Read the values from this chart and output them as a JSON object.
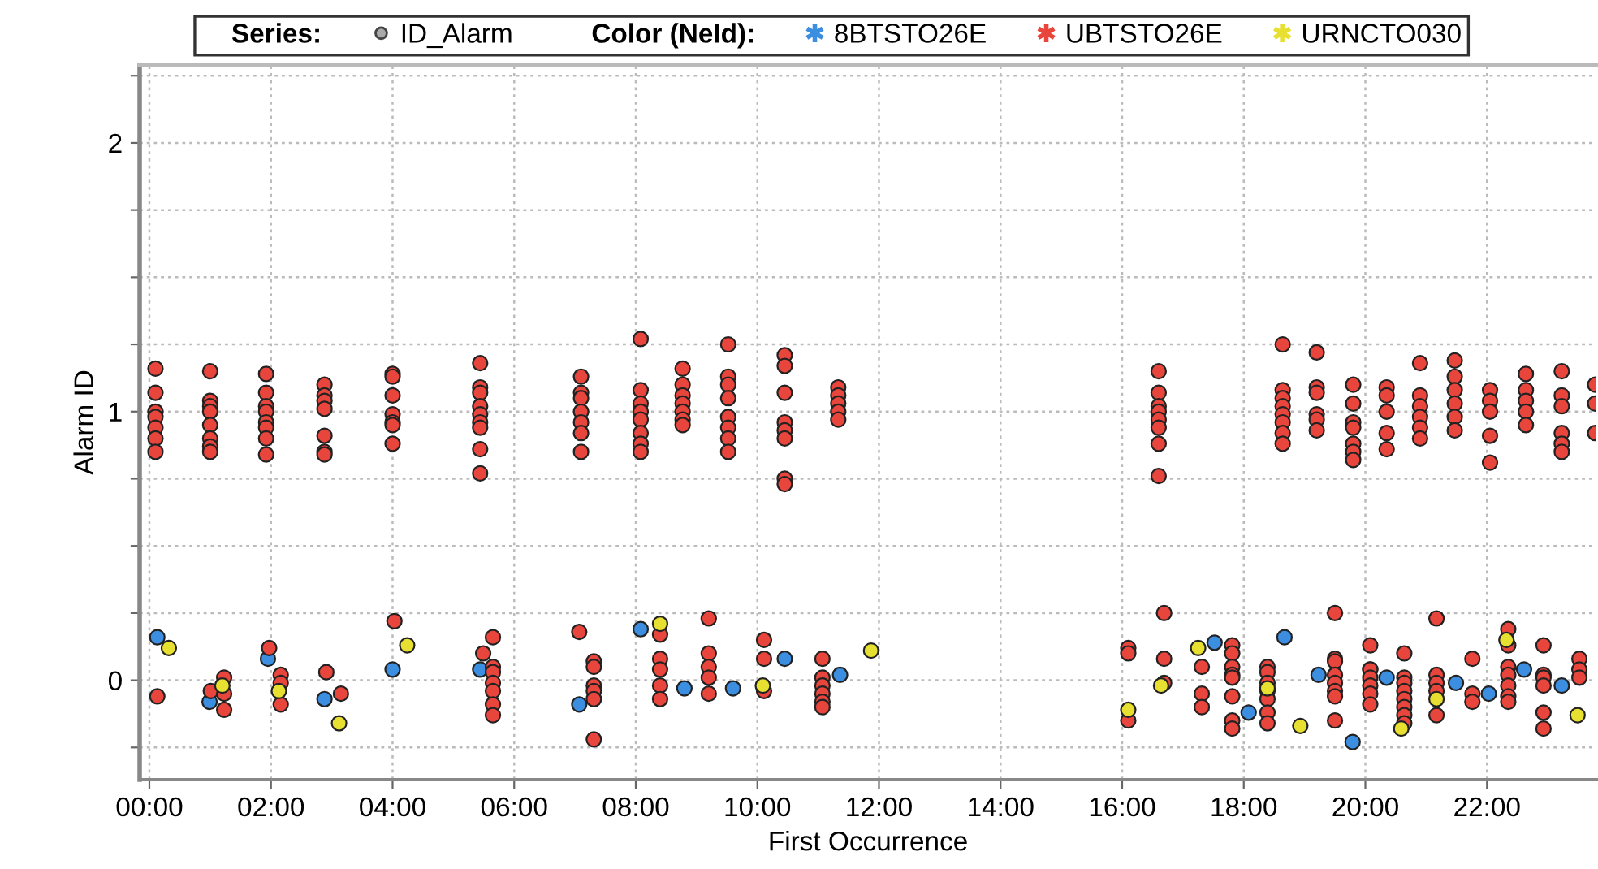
{
  "chart_data": {
    "type": "scatter",
    "xlabel": "First Occurrence",
    "ylabel": "Alarm ID",
    "legend_title": "Color (NeId):",
    "annotations": [
      "Series:",
      "ID_Alarm"
    ],
    "legend": "top",
    "grid": true,
    "marker": "circle",
    "xlim": [
      -0.16,
      23.8
    ],
    "ylim": [
      -0.37,
      2.29
    ],
    "xticks": [
      {
        "value": 0,
        "label": "00:00"
      },
      {
        "value": 2,
        "label": "02:00"
      },
      {
        "value": 4,
        "label": "04:00"
      },
      {
        "value": 6,
        "label": "06:00"
      },
      {
        "value": 8,
        "label": "08:00"
      },
      {
        "value": 10,
        "label": "10:00"
      },
      {
        "value": 12,
        "label": "12:00"
      },
      {
        "value": 14,
        "label": "14:00"
      },
      {
        "value": 16,
        "label": "16:00"
      },
      {
        "value": 18,
        "label": "18:00"
      },
      {
        "value": 20,
        "label": "20:00"
      },
      {
        "value": 22,
        "label": "22:00"
      }
    ],
    "yticks": [
      {
        "value": -0.25,
        "label": null
      },
      0,
      {
        "value": 0.25,
        "label": null
      },
      {
        "value": 0.5,
        "label": null
      },
      {
        "value": 0.75,
        "label": null
      },
      1,
      {
        "value": 1.25,
        "label": null
      },
      {
        "value": 1.5,
        "label": null
      },
      {
        "value": 1.75,
        "label": null
      },
      2,
      {
        "value": 2.25,
        "label": null
      }
    ],
    "series": [
      {
        "name": "8BTSTO26E",
        "color": "#3b8ee0",
        "x": [
          0.13,
          0.99,
          1.95,
          2.88,
          4.0,
          5.44,
          7.07,
          8.08,
          8.8,
          9.6,
          10.45,
          11.36,
          17.52,
          18.08,
          18.67,
          19.23,
          19.79,
          20.35,
          21.49,
          22.03,
          22.61,
          23.23
        ],
        "values": [
          0.16,
          -0.08,
          0.08,
          -0.07,
          0.04,
          0.04,
          -0.09,
          0.19,
          -0.03,
          -0.03,
          0.08,
          0.02,
          0.14,
          -0.12,
          0.16,
          0.02,
          -0.23,
          0.01,
          -0.01,
          -0.05,
          0.04,
          -0.02
        ]
      },
      {
        "name": "UBTSTO26E",
        "color": "#e8453c",
        "x": [
          0.1,
          0.1,
          0.1,
          0.1,
          0.1,
          0.1,
          0.1,
          1.0,
          1.0,
          1.0,
          1.0,
          1.0,
          1.0,
          1.0,
          1.0,
          1.92,
          1.92,
          1.92,
          1.92,
          1.92,
          1.92,
          1.92,
          1.92,
          2.88,
          2.88,
          2.88,
          2.88,
          2.88,
          2.88,
          2.88,
          4.0,
          4.0,
          4.0,
          4.0,
          4.0,
          4.0,
          4.0,
          5.44,
          5.44,
          5.44,
          5.44,
          5.44,
          5.44,
          5.44,
          5.44,
          5.44,
          7.1,
          7.1,
          7.1,
          7.1,
          7.1,
          7.1,
          7.1,
          8.08,
          8.08,
          8.08,
          8.08,
          8.08,
          8.08,
          8.08,
          8.08,
          8.77,
          8.77,
          8.77,
          8.77,
          8.77,
          8.77,
          8.77,
          9.52,
          9.52,
          9.52,
          9.52,
          9.52,
          9.52,
          9.52,
          9.52,
          10.45,
          10.45,
          10.45,
          10.45,
          10.45,
          10.45,
          10.45,
          10.45,
          11.33,
          11.33,
          11.33,
          11.33,
          11.33,
          16.6,
          16.6,
          16.6,
          16.6,
          16.6,
          16.6,
          16.6,
          16.6,
          18.64,
          18.64,
          18.64,
          18.64,
          18.64,
          18.64,
          18.64,
          18.64,
          19.2,
          19.2,
          19.2,
          19.2,
          19.2,
          19.2,
          19.8,
          19.8,
          19.8,
          19.8,
          19.8,
          19.8,
          19.8,
          20.35,
          20.35,
          20.35,
          20.35,
          20.35,
          20.9,
          20.9,
          20.9,
          20.9,
          20.9,
          20.9,
          21.47,
          21.47,
          21.47,
          21.47,
          21.47,
          21.47,
          22.05,
          22.05,
          22.05,
          22.05,
          22.05,
          22.64,
          22.64,
          22.64,
          22.64,
          22.64,
          23.23,
          23.23,
          23.23,
          23.23,
          23.23,
          23.23,
          23.78,
          23.78,
          23.78,
          0.13,
          1.01,
          1.23,
          1.23,
          1.23,
          1.97,
          2.16,
          2.16,
          2.16,
          2.91,
          3.15,
          4.03,
          5.49,
          5.65,
          5.65,
          5.65,
          5.65,
          5.65,
          5.65,
          5.65,
          7.07,
          7.31,
          7.31,
          7.31,
          7.31,
          7.31,
          7.31,
          8.4,
          8.4,
          8.4,
          8.4,
          8.4,
          9.2,
          9.2,
          9.2,
          9.2,
          9.2,
          10.11,
          10.11,
          10.11,
          11.07,
          11.07,
          11.07,
          11.07,
          11.07,
          11.07,
          16.1,
          16.1,
          16.1,
          16.69,
          16.69,
          16.69,
          17.31,
          17.31,
          17.31,
          17.81,
          17.81,
          17.81,
          17.81,
          17.81,
          17.81,
          17.81,
          17.81,
          18.39,
          18.39,
          18.39,
          18.39,
          18.39,
          18.39,
          18.39,
          19.5,
          19.5,
          19.5,
          19.5,
          19.5,
          19.5,
          19.5,
          19.5,
          20.08,
          20.08,
          20.08,
          20.08,
          20.08,
          20.08,
          20.08,
          20.64,
          20.64,
          20.64,
          20.64,
          20.64,
          20.64,
          20.64,
          20.64,
          21.17,
          21.17,
          21.17,
          21.17,
          21.17,
          21.76,
          21.76,
          21.76,
          22.35,
          22.35,
          22.35,
          22.35,
          22.35,
          22.35,
          22.35,
          22.93,
          22.93,
          22.93,
          22.93,
          22.93,
          22.93,
          23.52,
          23.52,
          23.52
        ],
        "values": [
          1.16,
          1.07,
          1.0,
          0.98,
          0.94,
          0.9,
          0.85,
          1.15,
          1.04,
          1.02,
          1.0,
          0.95,
          0.9,
          0.87,
          0.85,
          1.14,
          1.07,
          1.02,
          1.0,
          0.96,
          0.94,
          0.9,
          0.84,
          1.1,
          1.06,
          1.04,
          1.01,
          0.91,
          0.85,
          0.84,
          1.14,
          1.13,
          1.06,
          0.99,
          0.96,
          0.95,
          0.88,
          1.18,
          1.09,
          1.07,
          1.02,
          0.99,
          0.96,
          0.94,
          0.86,
          0.77,
          1.13,
          1.07,
          1.05,
          1.0,
          0.96,
          0.92,
          0.85,
          1.27,
          1.08,
          1.03,
          1.0,
          0.97,
          0.92,
          0.88,
          0.85,
          1.16,
          1.1,
          1.06,
          1.03,
          1.0,
          0.97,
          0.95,
          1.25,
          1.13,
          1.1,
          1.05,
          0.98,
          0.94,
          0.9,
          0.85,
          1.21,
          1.17,
          1.07,
          0.96,
          0.93,
          0.9,
          0.75,
          0.73,
          1.09,
          1.06,
          1.03,
          1.0,
          0.97,
          1.15,
          1.07,
          1.02,
          1.0,
          0.97,
          0.94,
          0.88,
          0.76,
          1.25,
          1.08,
          1.05,
          1.02,
          0.99,
          0.96,
          0.92,
          0.88,
          1.22,
          1.09,
          1.07,
          0.99,
          0.97,
          0.93,
          1.1,
          1.03,
          0.96,
          0.94,
          0.88,
          0.85,
          0.82,
          1.09,
          1.06,
          1.0,
          0.92,
          0.86,
          1.18,
          1.06,
          1.02,
          0.98,
          0.94,
          0.9,
          1.19,
          1.13,
          1.08,
          1.03,
          0.98,
          0.93,
          1.08,
          1.04,
          1.0,
          0.91,
          0.81,
          1.14,
          1.08,
          1.04,
          1.0,
          0.95,
          1.15,
          1.06,
          1.02,
          0.92,
          0.88,
          0.85,
          1.1,
          1.03,
          0.92,
          -0.06,
          -0.04,
          0.01,
          -0.05,
          -0.11,
          0.12,
          0.02,
          -0.01,
          -0.09,
          0.03,
          -0.05,
          0.22,
          0.1,
          0.16,
          0.05,
          0.03,
          -0.01,
          -0.04,
          -0.09,
          -0.13,
          0.18,
          0.07,
          0.05,
          -0.02,
          -0.04,
          -0.07,
          -0.22,
          0.17,
          0.08,
          0.04,
          -0.02,
          -0.07,
          0.23,
          0.1,
          0.05,
          0.01,
          -0.05,
          0.15,
          0.08,
          -0.04,
          0.08,
          0.01,
          -0.02,
          -0.05,
          -0.08,
          -0.1,
          0.12,
          0.1,
          -0.15,
          0.25,
          0.08,
          -0.01,
          0.05,
          -0.05,
          -0.1,
          0.13,
          0.1,
          0.05,
          0.02,
          0.01,
          -0.06,
          -0.15,
          -0.18,
          0.05,
          0.03,
          -0.01,
          -0.04,
          -0.07,
          -0.12,
          -0.16,
          0.25,
          0.08,
          0.07,
          0.02,
          -0.01,
          -0.04,
          -0.06,
          -0.15,
          0.13,
          0.04,
          0.04,
          0.01,
          -0.02,
          -0.05,
          -0.09,
          0.1,
          0.01,
          -0.01,
          -0.04,
          -0.07,
          -0.1,
          -0.13,
          -0.16,
          0.23,
          0.02,
          -0.01,
          -0.04,
          -0.13,
          0.08,
          -0.05,
          -0.08,
          0.19,
          0.13,
          0.05,
          0.02,
          -0.02,
          -0.06,
          -0.08,
          0.13,
          0.02,
          0.01,
          -0.02,
          -0.12,
          -0.18,
          0.08,
          0.04,
          0.01
        ]
      },
      {
        "name": "URNCTO030",
        "color": "#e8e030",
        "x": [
          0.32,
          1.2,
          2.13,
          3.12,
          4.24,
          8.4,
          10.09,
          11.87,
          16.1,
          16.64,
          17.25,
          18.39,
          18.93,
          20.59,
          21.17,
          22.32,
          23.49
        ],
        "values": [
          0.12,
          -0.02,
          -0.04,
          -0.16,
          0.13,
          0.21,
          -0.02,
          0.11,
          -0.11,
          -0.02,
          0.12,
          -0.03,
          -0.17,
          -0.18,
          -0.07,
          0.15,
          -0.13
        ]
      }
    ]
  }
}
